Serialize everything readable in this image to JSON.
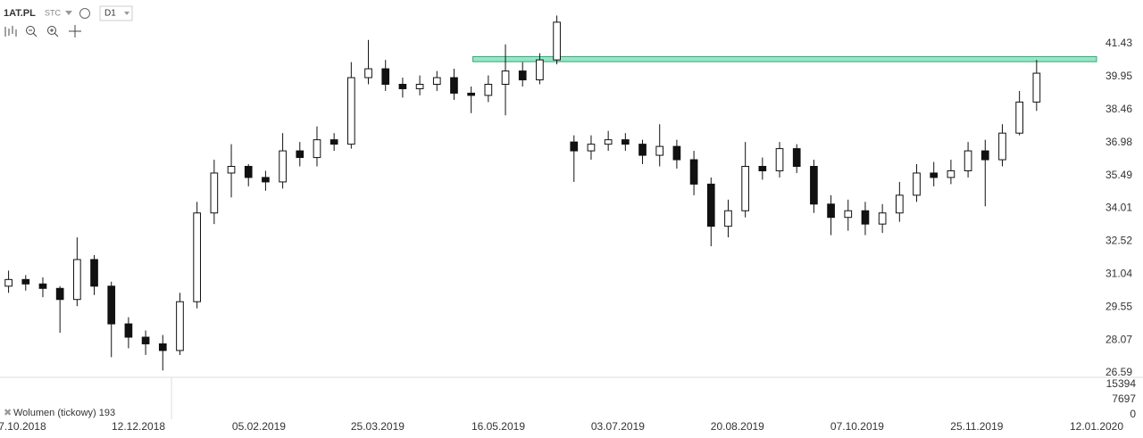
{
  "toolbar": {
    "symbol": "1AT.PL",
    "mode": "STC",
    "interval": "D1"
  },
  "chart_data": {
    "type": "candlestick",
    "open": [
      30.5,
      30.8,
      30.6,
      30.4,
      29.9,
      31.7,
      30.5,
      28.8,
      28.2,
      27.9,
      27.6,
      29.8,
      33.8,
      35.6,
      35.9,
      35.4,
      35.2,
      36.6,
      36.3,
      37.1,
      36.9,
      39.9,
      40.3,
      39.6,
      39.4,
      39.6,
      39.9,
      39.2,
      39.1,
      39.6,
      40.2,
      39.8,
      40.7,
      37.0,
      36.6,
      36.9,
      37.1,
      36.9,
      36.4,
      36.8,
      36.2,
      35.1,
      33.2,
      33.9,
      35.9,
      35.7,
      36.7,
      35.9,
      34.2,
      33.6,
      33.9,
      33.3,
      33.8,
      34.6,
      35.6,
      35.4,
      35.7,
      36.6,
      36.2,
      37.4,
      38.8
    ],
    "high": [
      31.2,
      31.0,
      30.9,
      30.5,
      32.7,
      31.9,
      30.7,
      29.1,
      28.5,
      28.3,
      30.2,
      34.3,
      36.2,
      36.9,
      36.0,
      35.7,
      37.4,
      37.0,
      37.7,
      37.4,
      40.6,
      41.6,
      40.7,
      39.9,
      40.0,
      40.2,
      40.3,
      39.5,
      40.0,
      41.4,
      40.6,
      41.0,
      42.7,
      37.3,
      37.3,
      37.5,
      37.4,
      37.1,
      37.8,
      37.1,
      36.6,
      35.4,
      34.4,
      37.0,
      36.3,
      37.0,
      36.9,
      36.2,
      34.6,
      34.4,
      34.3,
      34.2,
      35.2,
      36.0,
      36.1,
      36.2,
      37.0,
      37.1,
      37.8,
      39.3,
      40.7
    ],
    "low": [
      30.2,
      30.3,
      30.0,
      28.4,
      29.6,
      30.1,
      27.3,
      27.7,
      27.4,
      26.7,
      27.4,
      29.5,
      33.3,
      34.5,
      35.0,
      34.8,
      34.9,
      35.9,
      35.9,
      36.6,
      36.7,
      39.6,
      39.3,
      39.0,
      39.1,
      39.3,
      38.9,
      38.3,
      38.8,
      38.2,
      39.5,
      39.6,
      40.5,
      35.2,
      36.2,
      36.6,
      36.6,
      36.0,
      35.9,
      35.8,
      34.6,
      32.3,
      32.7,
      33.6,
      35.3,
      35.4,
      35.6,
      33.8,
      32.8,
      33.0,
      32.8,
      32.9,
      33.4,
      34.3,
      35.0,
      35.1,
      35.4,
      34.1,
      35.9,
      37.3,
      38.4
    ],
    "close": [
      30.8,
      30.6,
      30.4,
      29.9,
      31.7,
      30.5,
      28.8,
      28.2,
      27.9,
      27.6,
      29.8,
      33.8,
      35.6,
      35.9,
      35.4,
      35.2,
      36.6,
      36.3,
      37.1,
      36.9,
      39.9,
      40.3,
      39.6,
      39.4,
      39.6,
      39.9,
      39.2,
      39.1,
      39.6,
      40.2,
      39.8,
      40.7,
      42.4,
      36.6,
      36.9,
      37.1,
      36.9,
      36.4,
      36.8,
      36.2,
      35.1,
      33.2,
      33.9,
      35.9,
      35.7,
      36.7,
      35.9,
      34.2,
      33.6,
      33.9,
      33.3,
      33.8,
      34.6,
      35.6,
      35.4,
      35.7,
      36.6,
      36.2,
      37.4,
      38.8,
      40.1
    ],
    "up_color": "#ffffff",
    "down_color": "#111111",
    "xlim": [
      0,
      64
    ],
    "xticks": [
      {
        "value": 1.3,
        "label": "7.10.2018"
      },
      {
        "value": 8.08,
        "label": "12.12.2018"
      },
      {
        "value": 15.11,
        "label": "05.02.2019"
      },
      {
        "value": 22.04,
        "label": "25.03.2019"
      },
      {
        "value": 29.08,
        "label": "16.05.2019"
      },
      {
        "value": 36.06,
        "label": "03.07.2019"
      },
      {
        "value": 43.04,
        "label": "20.08.2019"
      },
      {
        "value": 50.03,
        "label": "07.10.2019"
      },
      {
        "value": 57.01,
        "label": "25.11.2019"
      },
      {
        "value": 64,
        "label": "12.01.2020"
      }
    ],
    "ylim": [
      26.39,
      43.4
    ],
    "yticks": [
      41.43,
      39.95,
      38.46,
      36.98,
      35.49,
      34.01,
      32.52,
      31.04,
      29.55,
      28.07,
      26.59
    ],
    "zone": {
      "color": "#7ee0b8",
      "from": 40.62,
      "to": 40.85,
      "start": 27.6
    },
    "volume_pane": {
      "label": "Wolumen (tickowy) 193",
      "ylim": [
        0,
        15394
      ],
      "yticks": [
        15394,
        7697,
        0
      ]
    }
  }
}
